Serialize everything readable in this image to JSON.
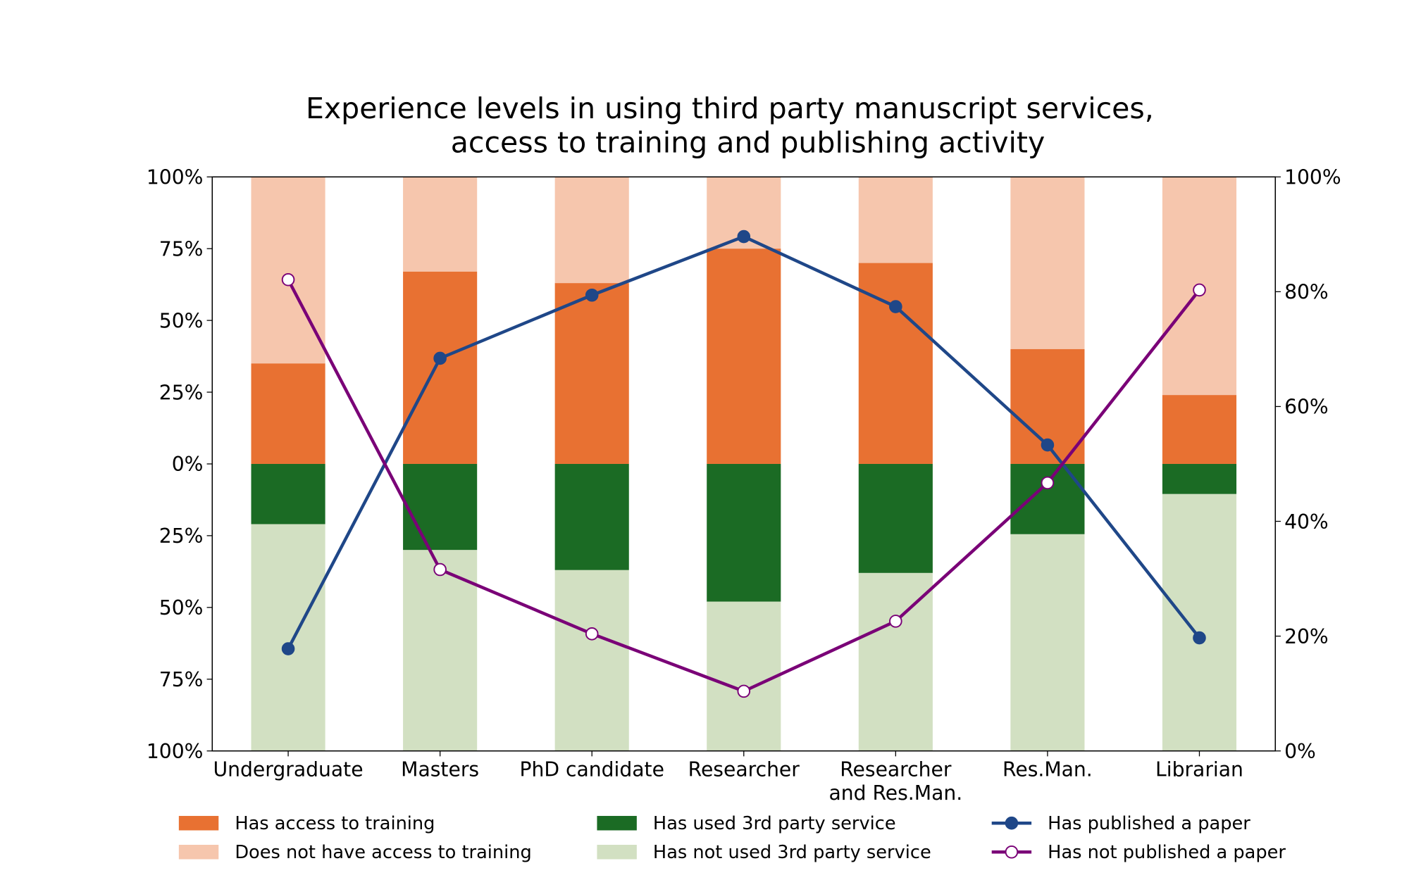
{
  "chart_data": {
    "type": "bar",
    "title": [
      "Experience levels in using third party manuscript services,",
      "access to training and publishing activity"
    ],
    "categories": [
      "Undergraduate",
      "Masters",
      "PhD candidate",
      "Researcher",
      "Researcher\nand Res.Man.",
      "Res.Man.",
      "Librarian"
    ],
    "left_axis": {
      "ylim": [
        -100,
        100
      ],
      "ticks": [
        100,
        75,
        50,
        25,
        0,
        -25,
        -50,
        -75,
        -100
      ],
      "tick_labels": [
        "100%",
        "75%",
        "50%",
        "25%",
        "0%",
        "25%",
        "50%",
        "75%",
        "100%"
      ]
    },
    "right_axis": {
      "ylim": [
        0,
        100
      ],
      "ticks": [
        0,
        20,
        40,
        60,
        80,
        100
      ],
      "tick_labels": [
        "0%",
        "20%",
        "40%",
        "60%",
        "80%",
        "100%"
      ]
    },
    "series": [
      {
        "name": "Has access to training",
        "kind": "bar-up",
        "color": "#E87132",
        "values": [
          35,
          67,
          63,
          75,
          70,
          40,
          24
        ]
      },
      {
        "name": "Does not have access to training",
        "kind": "bar-up-rest",
        "color": "#F6C6AD",
        "values": [
          65,
          33,
          37,
          25,
          30,
          60,
          76
        ]
      },
      {
        "name": "Has used 3rd party service",
        "kind": "bar-down",
        "color": "#1B6B24",
        "values": [
          21,
          30,
          37,
          48,
          38,
          24.5,
          10.5
        ]
      },
      {
        "name": "Has not used 3rd party service",
        "kind": "bar-down-rest",
        "color": "#D2E0C2",
        "values": [
          79,
          70,
          63,
          52,
          62,
          75.5,
          89.5
        ]
      },
      {
        "name": "Has published a paper",
        "kind": "line",
        "color": "#1F4788",
        "marker_fill": "#1F4788",
        "values": [
          17.8,
          68.4,
          79.4,
          89.6,
          77.4,
          53.3,
          19.7
        ]
      },
      {
        "name": "Has not published a paper",
        "kind": "line",
        "color": "#7A0177",
        "marker_fill": "#FFFFFF",
        "values": [
          82.1,
          31.6,
          20.4,
          10.4,
          22.6,
          46.7,
          80.3
        ]
      }
    ],
    "legend": "bottom"
  }
}
